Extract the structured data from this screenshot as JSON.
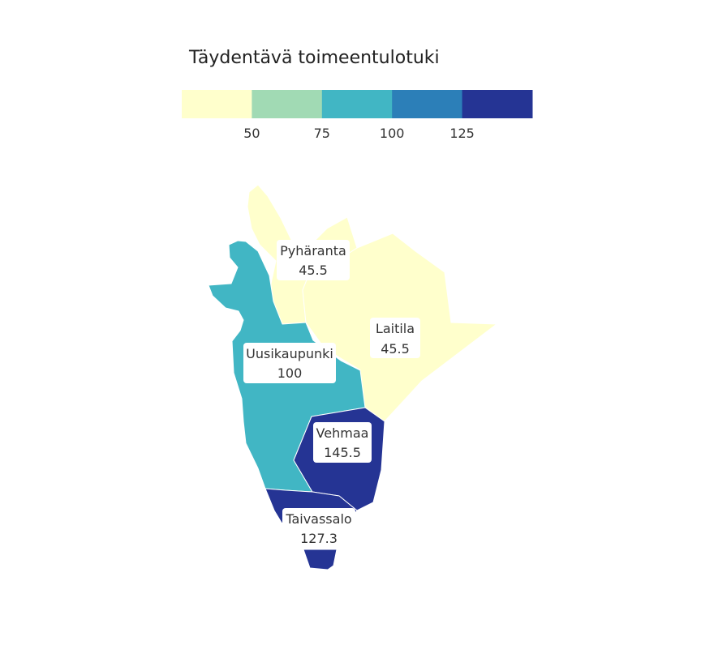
{
  "legend": {
    "title": "Täydentävä toimeentulotuki",
    "bins": [
      {
        "color": "#ffffcc"
      },
      {
        "color": "#a1dab4"
      },
      {
        "color": "#41b6c4"
      },
      {
        "color": "#2c7fb8"
      },
      {
        "color": "#253494"
      }
    ],
    "ticks": [
      "50",
      "75",
      "100",
      "125"
    ]
  },
  "regions": [
    {
      "id": "pyharanta",
      "name": "Pyhäranta",
      "value": "45.5",
      "color": "#ffffcc"
    },
    {
      "id": "laitila",
      "name": "Laitila",
      "value": "45.5",
      "color": "#ffffcc"
    },
    {
      "id": "uusikaupunki",
      "name": "Uusikaupunki",
      "value": "100",
      "color": "#41b6c4"
    },
    {
      "id": "vehmaa",
      "name": "Vehmaa",
      "value": "145.5",
      "color": "#253494"
    },
    {
      "id": "taivassalo",
      "name": "Taivassalo",
      "value": "127.3",
      "color": "#253494"
    }
  ]
}
